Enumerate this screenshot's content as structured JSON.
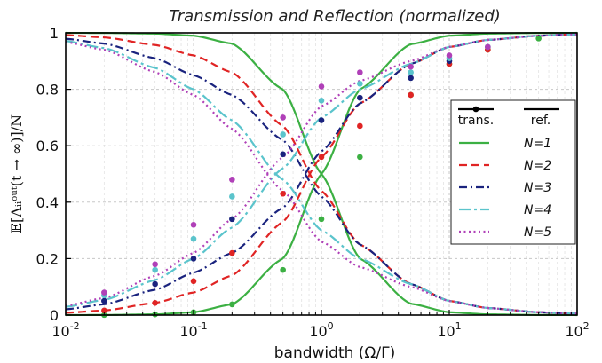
{
  "chart_data": {
    "type": "line",
    "title": "Transmission and Reflection (normalized)",
    "xlabel": "bandwidth (Ω/Γ)",
    "ylabel": "𝔼[Λᵢᵢᵒᵘᵗ(t → ∞)]/N",
    "x_scale": "log",
    "xlim": [
      0.01,
      100
    ],
    "ylim": [
      0,
      1
    ],
    "grid": true,
    "x_ticks": [
      {
        "base": "10",
        "exp": "-2"
      },
      {
        "base": "10",
        "exp": "-1"
      },
      {
        "base": "10",
        "exp": "0"
      },
      {
        "base": "10",
        "exp": "1"
      },
      {
        "base": "10",
        "exp": "2"
      }
    ],
    "y_ticks": [
      "0",
      "0.2",
      "0.4",
      "0.6",
      "0.8",
      "1"
    ],
    "legend": {
      "placement": "right",
      "header_trans": "trans.",
      "header_ref": "ref.",
      "entries": [
        "N=1",
        "N=2",
        "N=3",
        "N=4",
        "N=5"
      ]
    },
    "x": [
      0.01,
      0.02,
      0.05,
      0.1,
      0.2,
      0.5,
      1,
      2,
      5,
      10,
      20,
      50,
      100
    ],
    "series": [
      {
        "name": "N=1",
        "color": "#3cb043",
        "dash": "solid",
        "transmission": [
          0.0001,
          0.0004,
          0.0025,
          0.01,
          0.038,
          0.2,
          0.5,
          0.8,
          0.96,
          0.99,
          0.9975,
          0.9996,
          0.9999
        ],
        "reflection": [
          0.9999,
          0.9996,
          0.9975,
          0.99,
          0.962,
          0.8,
          0.5,
          0.2,
          0.04,
          0.01,
          0.0025,
          0.0004,
          0.0001
        ]
      },
      {
        "name": "N=2",
        "color": "#e02424",
        "dash": "dashed",
        "transmission": [
          0.0084,
          0.0163,
          0.0431,
          0.08,
          0.14,
          0.33,
          0.56,
          0.75,
          0.89,
          0.95,
          0.975,
          0.99,
          0.995
        ],
        "reflection": [
          0.992,
          0.984,
          0.957,
          0.92,
          0.86,
          0.67,
          0.44,
          0.25,
          0.11,
          0.05,
          0.025,
          0.01,
          0.005
        ]
      },
      {
        "name": "N=3",
        "color": "#1a237e",
        "dash": "dashdot",
        "transmission": [
          0.0206,
          0.0382,
          0.0897,
          0.15,
          0.22,
          0.38,
          0.58,
          0.75,
          0.89,
          0.95,
          0.975,
          0.99,
          0.995
        ],
        "reflection": [
          0.979,
          0.962,
          0.91,
          0.85,
          0.78,
          0.62,
          0.42,
          0.25,
          0.11,
          0.05,
          0.025,
          0.01,
          0.005
        ]
      },
      {
        "name": "N=4",
        "color": "#5bc4cc",
        "dash": "dashdotlong",
        "transmission": [
          0.0294,
          0.0536,
          0.124,
          0.2,
          0.31,
          0.52,
          0.7,
          0.8,
          0.89,
          0.95,
          0.975,
          0.99,
          0.995
        ],
        "reflection": [
          0.971,
          0.946,
          0.876,
          0.8,
          0.69,
          0.48,
          0.3,
          0.2,
          0.11,
          0.05,
          0.025,
          0.01,
          0.005
        ]
      },
      {
        "name": "N=5",
        "color": "#b040b8",
        "dash": "dotted",
        "transmission": [
          0.0333,
          0.0605,
          0.139,
          0.22,
          0.34,
          0.56,
          0.74,
          0.83,
          0.9,
          0.95,
          0.975,
          0.99,
          0.995
        ],
        "reflection": [
          0.967,
          0.94,
          0.861,
          0.78,
          0.66,
          0.44,
          0.26,
          0.17,
          0.1,
          0.05,
          0.025,
          0.01,
          0.005
        ]
      }
    ],
    "trans_markers": [
      {
        "series": "N=1",
        "x": [
          0.02,
          0.05,
          0.1,
          0.2,
          0.5,
          1,
          2,
          5,
          10,
          20,
          50
        ],
        "y": [
          0.0004,
          0.0025,
          0.01,
          0.038,
          0.16,
          0.34,
          0.56,
          0.78,
          0.89,
          0.94,
          0.98
        ]
      },
      {
        "series": "N=2",
        "x": [
          0.02,
          0.05,
          0.1,
          0.2,
          0.5,
          1,
          2,
          5,
          10,
          20
        ],
        "y": [
          0.0163,
          0.0431,
          0.12,
          0.22,
          0.43,
          0.56,
          0.67,
          0.78,
          0.89,
          0.94
        ]
      },
      {
        "series": "N=3",
        "x": [
          0.02,
          0.05,
          0.1,
          0.2,
          0.5,
          1,
          2,
          5,
          10,
          20
        ],
        "y": [
          0.05,
          0.11,
          0.2,
          0.34,
          0.57,
          0.69,
          0.77,
          0.84,
          0.9,
          0.95
        ]
      },
      {
        "series": "N=4",
        "x": [
          0.02,
          0.05,
          0.1,
          0.2,
          0.5,
          1,
          2,
          5,
          10,
          20
        ],
        "y": [
          0.07,
          0.16,
          0.27,
          0.42,
          0.64,
          0.76,
          0.82,
          0.86,
          0.91,
          0.95
        ]
      },
      {
        "series": "N=5",
        "x": [
          0.02,
          0.05,
          0.1,
          0.2,
          0.5,
          1,
          2,
          5,
          10,
          20
        ],
        "y": [
          0.08,
          0.18,
          0.32,
          0.48,
          0.7,
          0.81,
          0.86,
          0.88,
          0.92,
          0.95
        ]
      }
    ]
  }
}
